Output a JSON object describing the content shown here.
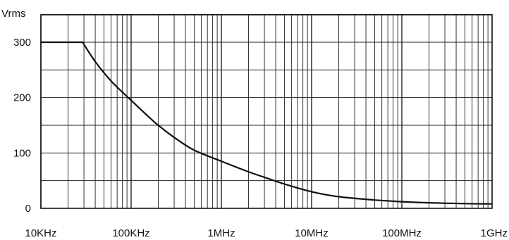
{
  "chart_data": {
    "type": "line",
    "title": "",
    "xlabel": "",
    "ylabel": "Vrms",
    "xscale": "log",
    "xlim": [
      10000,
      1000000000
    ],
    "ylim": [
      0,
      350
    ],
    "grid": true,
    "x_ticks": [
      {
        "value": 10000,
        "label": "10KHz"
      },
      {
        "value": 100000,
        "label": "100KHz"
      },
      {
        "value": 1000000,
        "label": "1MHz"
      },
      {
        "value": 10000000,
        "label": "10MHz"
      },
      {
        "value": 100000000,
        "label": "100MHz"
      },
      {
        "value": 1000000000,
        "label": "1GHz"
      }
    ],
    "y_ticks": [
      {
        "value": 0,
        "label": "0"
      },
      {
        "value": 100,
        "label": "100"
      },
      {
        "value": 200,
        "label": "200"
      },
      {
        "value": 300,
        "label": "300"
      }
    ],
    "series": [
      {
        "color": "#111111",
        "points": [
          [
            10000,
            300
          ],
          [
            29000,
            300
          ],
          [
            40000,
            265
          ],
          [
            60000,
            230
          ],
          [
            100000,
            195
          ],
          [
            150000,
            168
          ],
          [
            200000,
            150
          ],
          [
            300000,
            128
          ],
          [
            500000,
            105
          ],
          [
            1000000,
            85
          ],
          [
            2000000,
            66
          ],
          [
            3000000,
            56
          ],
          [
            5000000,
            44
          ],
          [
            10000000,
            30
          ],
          [
            20000000,
            21
          ],
          [
            50000000,
            15
          ],
          [
            100000000,
            12
          ],
          [
            200000000,
            10
          ],
          [
            500000000,
            8.5
          ],
          [
            1000000000,
            8
          ]
        ]
      }
    ]
  }
}
